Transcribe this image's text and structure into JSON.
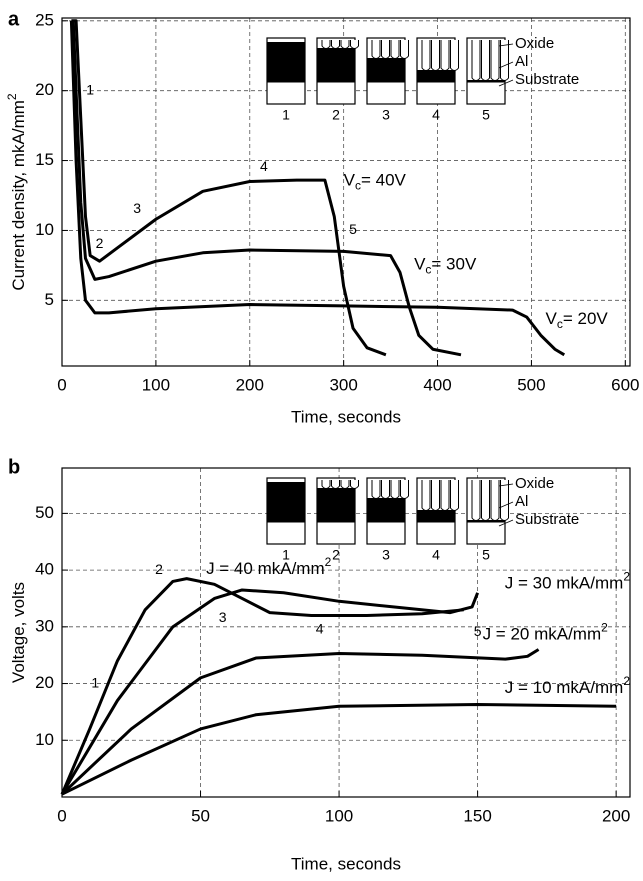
{
  "chart_data": [
    {
      "type": "line",
      "panel": "a",
      "xlabel": "Time, seconds",
      "ylabel": {
        "text": "Current density, mkA/mm",
        "sup": "2"
      },
      "xlim": [
        0,
        605
      ],
      "ylim": [
        0.3,
        25.2
      ],
      "xticks": [
        0,
        100,
        200,
        300,
        400,
        500,
        600
      ],
      "yticks": [
        5,
        10,
        15,
        20,
        25
      ],
      "grid": true,
      "series": [
        {
          "label": {
            "main": "V",
            "sub": "c",
            "rest": "= 40V"
          },
          "color": "#000000",
          "x": [
            10,
            15,
            20,
            25,
            30,
            40,
            60,
            100,
            150,
            200,
            250,
            280,
            290,
            300,
            310,
            325,
            345
          ],
          "values": [
            25,
            25,
            18,
            11,
            8.2,
            7.8,
            8.8,
            10.8,
            12.8,
            13.5,
            13.6,
            13.6,
            11,
            6,
            3,
            1.6,
            1.1
          ]
        },
        {
          "label": {
            "main": "V",
            "sub": "c",
            "rest": "= 30V"
          },
          "color": "#000000",
          "x": [
            12,
            15,
            20,
            25,
            35,
            50,
            100,
            150,
            200,
            300,
            350,
            360,
            370,
            380,
            395,
            425
          ],
          "values": [
            25,
            20,
            12,
            8,
            6.5,
            6.7,
            7.8,
            8.4,
            8.6,
            8.5,
            8.2,
            7,
            4.5,
            2.5,
            1.5,
            1.1
          ]
        },
        {
          "label": {
            "main": "V",
            "sub": "c",
            "rest": "= 20V"
          },
          "color": "#000000",
          "x": [
            10,
            15,
            20,
            25,
            35,
            50,
            100,
            200,
            300,
            400,
            480,
            495,
            510,
            525,
            535
          ],
          "values": [
            25,
            15,
            8,
            5,
            4.1,
            4.1,
            4.4,
            4.7,
            4.6,
            4.5,
            4.3,
            3.8,
            2.5,
            1.5,
            1.1
          ]
        }
      ],
      "annotations": [
        "1",
        "2",
        "3",
        "4",
        "5"
      ],
      "inset": {
        "stages": [
          "1",
          "2",
          "3",
          "4",
          "5"
        ],
        "layers": [
          "Oxide",
          "Al",
          "Substrate"
        ]
      }
    },
    {
      "type": "line",
      "panel": "b",
      "xlabel": "Time, seconds",
      "ylabel": {
        "text": "Voltage, volts"
      },
      "xlim": [
        0,
        205
      ],
      "ylim": [
        0,
        58
      ],
      "xticks": [
        0,
        50,
        100,
        150,
        200
      ],
      "yticks": [
        10,
        20,
        30,
        40,
        50
      ],
      "grid": true,
      "series": [
        {
          "label": {
            "main": "J = 40 mkA/mm",
            "sup": "2"
          },
          "color": "#000000",
          "x": [
            0,
            10,
            20,
            30,
            40,
            45,
            55,
            65,
            75,
            90,
            110,
            130,
            145
          ],
          "values": [
            0.5,
            12,
            24,
            33,
            38,
            38.5,
            37.5,
            35,
            32.5,
            32,
            32,
            32.3,
            33
          ]
        },
        {
          "label": {
            "main": "J = 30 mkA/mm",
            "sup": "2"
          },
          "color": "#000000",
          "x": [
            0,
            20,
            40,
            55,
            65,
            80,
            100,
            120,
            140,
            148,
            150
          ],
          "values": [
            0.5,
            17,
            30,
            35,
            36.5,
            36,
            34.5,
            33.5,
            32.5,
            33.5,
            36
          ]
        },
        {
          "label": {
            "main": "J = 20 mkA/mm",
            "sup": "2"
          },
          "color": "#000000",
          "x": [
            0,
            25,
            50,
            70,
            100,
            130,
            160,
            168,
            172
          ],
          "values": [
            0.5,
            12,
            21,
            24.5,
            25.3,
            25,
            24.3,
            24.8,
            26
          ]
        },
        {
          "label": {
            "main": "J = 10 mkA/mm",
            "sup": "2"
          },
          "color": "#000000",
          "x": [
            0,
            25,
            50,
            70,
            100,
            150,
            200
          ],
          "values": [
            0.5,
            6.5,
            12,
            14.5,
            16,
            16.3,
            16
          ]
        }
      ],
      "annotations": [
        "1",
        "2",
        "3",
        "4",
        "5"
      ],
      "inset": {
        "stages": [
          "1",
          "2",
          "3",
          "4",
          "5"
        ],
        "layers": [
          "Oxide",
          "Al",
          "Substrate"
        ]
      }
    }
  ]
}
